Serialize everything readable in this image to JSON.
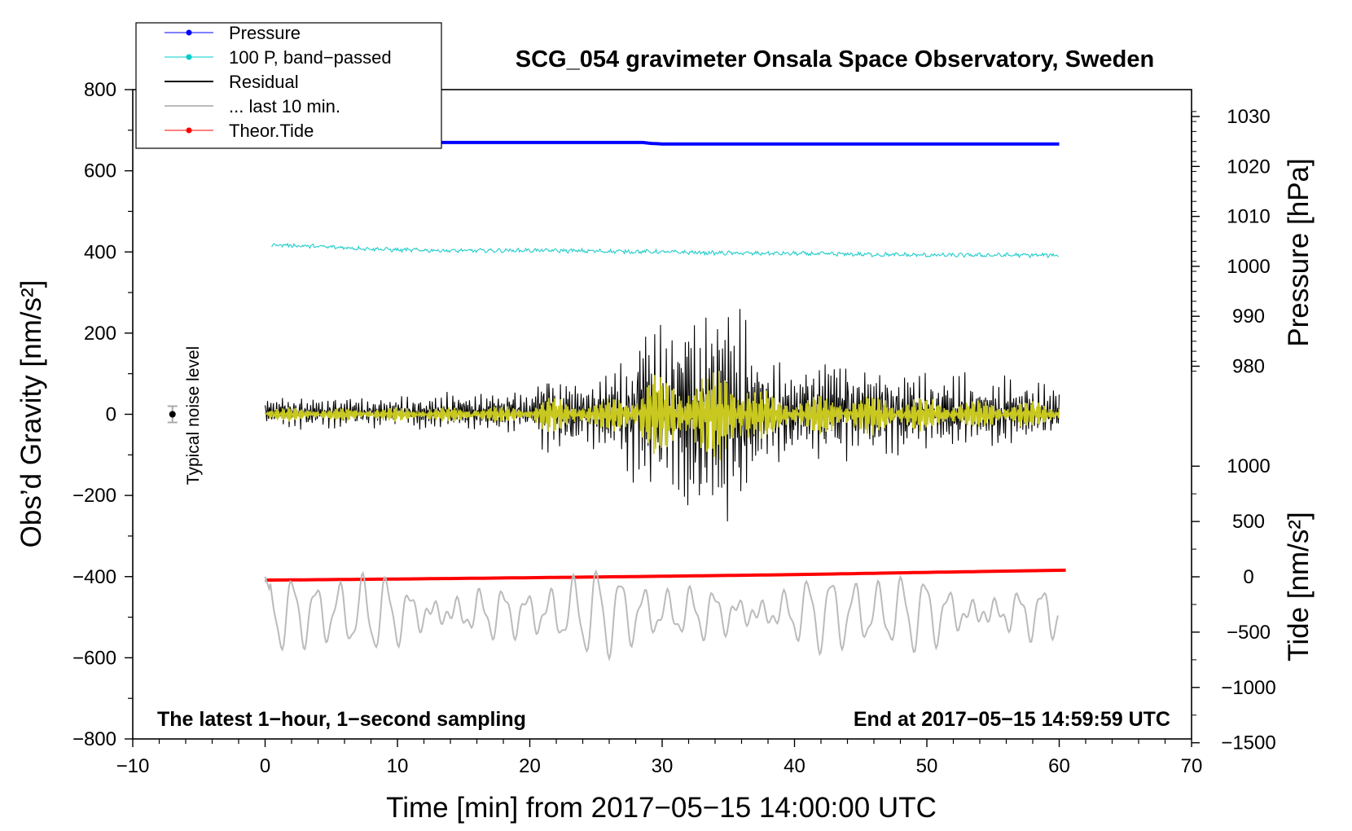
{
  "chart_data": {
    "type": "line",
    "title": "SCG_054 gravimeter Onsala Space Observatory, Sweden",
    "xlabel": "Time [min] from 2017−05−15 14:00:00 UTC",
    "ylabel_left": "Obs’d Gravity [nm/s²]",
    "ylabel_right_top": "Pressure [hPa]",
    "ylabel_right_bottom": "Tide [nm/s²]",
    "xlim": [
      -10,
      70
    ],
    "ylim": [
      -800,
      800
    ],
    "x_ticks": [
      "−10",
      "0",
      "10",
      "20",
      "30",
      "40",
      "50",
      "60",
      "70"
    ],
    "y_ticks": [
      "800",
      "600",
      "400",
      "200",
      "0",
      "−200",
      "−400",
      "−600",
      "−800"
    ],
    "pressure_axis": {
      "ticks": [
        1030,
        1020,
        1010,
        1000,
        990,
        980
      ],
      "labels": [
        "1030",
        "1020",
        "1010",
        "1000",
        "990",
        "980"
      ]
    },
    "tide_axis": {
      "ticks": [
        1000,
        500,
        0,
        -500,
        -1000,
        -1500
      ],
      "labels": [
        "1000",
        "500",
        "0",
        "−500",
        "−1000",
        "−1500"
      ]
    },
    "legend": [
      {
        "label": "Pressure",
        "color": "#0000ff",
        "marker": true
      },
      {
        "label": "100 P, band−passed",
        "color": "#00cccc",
        "marker": true
      },
      {
        "label": "Residual",
        "color": "#000000",
        "marker": false
      },
      {
        "label": "... last 10 min.",
        "color": "#bbbbbb",
        "marker": false
      },
      {
        "label": "Theor.Tide",
        "color": "#ff0000",
        "marker": true
      }
    ],
    "annotations": {
      "noise_label": "Typical noise level",
      "bottom_left": "The latest 1−hour, 1−second sampling",
      "bottom_right": "End at 2017−05−15 14:59:59 UTC"
    },
    "noise_marker": {
      "x": -7,
      "y": 0,
      "err": 20
    },
    "series": [
      {
        "name": "Pressure",
        "color": "#0000ff",
        "axis": "pressure",
        "x": [
          0,
          10,
          20,
          28.5,
          29.2,
          30,
          40,
          50,
          60
        ],
        "values": [
          1024.9,
          1024.8,
          1024.8,
          1024.8,
          1024.6,
          1024.5,
          1024.5,
          1024.5,
          1024.5
        ]
      },
      {
        "name": "100 P, band-passed",
        "color": "#00cccc",
        "axis": "gravity",
        "x": [
          0.5,
          5,
          10,
          15,
          20,
          25,
          30,
          35,
          40,
          45,
          50,
          55,
          60
        ],
        "values": [
          418,
          412,
          405,
          403,
          404,
          402,
          400,
          397,
          396,
          394,
          392,
          392,
          392
        ]
      },
      {
        "name": "Residual",
        "color": "#000000",
        "axis": "gravity",
        "x": [
          0,
          5,
          10,
          15,
          20,
          21,
          25,
          27,
          29,
          30,
          31,
          32,
          33,
          34,
          35,
          36,
          37,
          40,
          43,
          45,
          50,
          55,
          60
        ],
        "values": [
          50,
          45,
          48,
          55,
          60,
          120,
          95,
          140,
          290,
          270,
          250,
          300,
          270,
          310,
          345,
          330,
          180,
          120,
          150,
          140,
          110,
          100,
          80
        ]
      },
      {
        "name": "... last 10 min.",
        "color": "#bbbbbb",
        "axis": "gravity",
        "x": [
          0,
          10,
          20,
          30,
          40,
          50,
          60
        ],
        "values": [
          -400,
          -520,
          -500,
          -510,
          -490,
          -520,
          -510
        ]
      },
      {
        "name": "Theor.Tide",
        "color": "#ff0000",
        "axis": "tide",
        "x": [
          0,
          10,
          20,
          30,
          40,
          50,
          60.5
        ],
        "values": [
          -30,
          -20,
          -8,
          5,
          20,
          40,
          60
        ]
      }
    ]
  }
}
